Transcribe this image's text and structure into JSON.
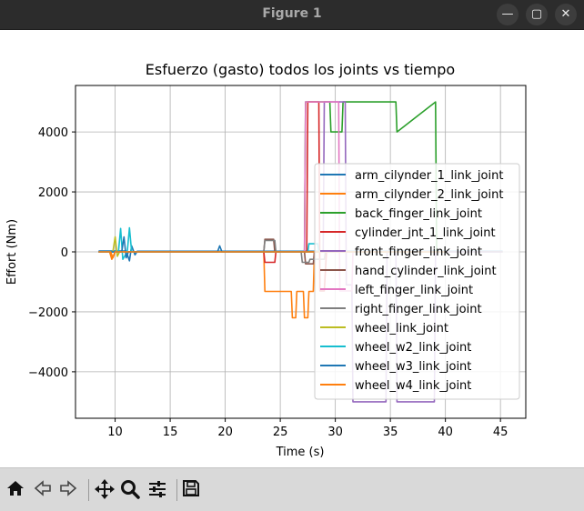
{
  "window": {
    "title": "Figure 1",
    "buttons": {
      "minimize": "—",
      "maximize": "▢",
      "close": "✕"
    }
  },
  "toolbar": {
    "tools": [
      "home-icon",
      "back-icon",
      "forward-icon",
      "pan-icon",
      "zoom-icon",
      "configure-subplots-icon",
      "save-icon"
    ]
  },
  "colors": {
    "titlebar_bg": "#2c2c2c",
    "toolbar_bg": "#d9d9d9",
    "series": [
      "#1f77b4",
      "#ff7f0e",
      "#2ca02c",
      "#d62728",
      "#9467bd",
      "#8c564b",
      "#e377c2",
      "#7f7f7f",
      "#bcbd22",
      "#17becf",
      "#1f77b4",
      "#ff7f0e"
    ]
  },
  "chart_data": {
    "type": "line",
    "title": "Esfuerzo (gasto) todos los joints vs tiempo",
    "xlabel": "Time (s)",
    "ylabel": "Effort (Nm)",
    "xlim": [
      6.4,
      47.3
    ],
    "ylim": [
      -5550,
      5550
    ],
    "xticks": [
      10,
      15,
      20,
      25,
      30,
      35,
      40,
      45
    ],
    "yticks": [
      -4000,
      -2000,
      0,
      2000,
      4000
    ],
    "yticklabels": [
      "−4000",
      "−2000",
      "0",
      "2000",
      "4000"
    ],
    "grid": true,
    "legend_position": "right",
    "series": [
      {
        "name": "arm_cilynder_1_link_joint",
        "x": [
          8.5,
          11,
          11.3,
          11.5,
          11.8,
          12,
          19.5,
          28,
          40,
          45.2
        ],
        "y": [
          30,
          30,
          -300,
          200,
          -100,
          20,
          20,
          20,
          20,
          20
        ]
      },
      {
        "name": "arm_cilynder_2_link_joint",
        "x": [
          8.5,
          9.5,
          9.7,
          10,
          23.5,
          23.6,
          26,
          26.1,
          26.4,
          26.5,
          27.1,
          27.2,
          27.5,
          27.6,
          28,
          28.1,
          29.5,
          40,
          45.2
        ],
        "y": [
          0,
          0,
          -250,
          0,
          0,
          -1320,
          -1320,
          -2200,
          -2200,
          -1320,
          -1320,
          -2200,
          -2200,
          -1320,
          -1320,
          0,
          0,
          0,
          0
        ]
      },
      {
        "name": "back_finger_link_joint",
        "x": [
          8.5,
          27.2,
          27.3,
          29.5,
          29.6,
          30.6,
          30.7,
          35.5,
          35.6,
          39.1,
          39.2,
          45.2
        ],
        "y": [
          0,
          0,
          5000,
          5000,
          4000,
          4000,
          5000,
          5000,
          4000,
          5000,
          0,
          0
        ]
      },
      {
        "name": "cylinder_jnt_1_link_joint",
        "x": [
          8.5,
          23.5,
          23.6,
          24.5,
          24.6,
          27.4,
          27.5,
          28.5,
          28.6,
          29,
          29.2,
          40
        ],
        "y": [
          0,
          0,
          -350,
          -350,
          0,
          0,
          5000,
          5000,
          -1300,
          -1300,
          0,
          0
        ]
      },
      {
        "name": "front_finger_link_joint",
        "x": [
          8.5,
          28.9,
          29,
          30.9,
          31,
          31.5,
          31.6,
          34.6,
          34.7,
          35.5,
          35.6,
          39,
          39.1,
          45.2
        ],
        "y": [
          0,
          0,
          5000,
          5000,
          -1100,
          -1100,
          -5000,
          -5000,
          0,
          0,
          -5000,
          -5000,
          0,
          0
        ]
      },
      {
        "name": "hand_cylinder_link_joint",
        "x": [
          8.5,
          23.5,
          23.6,
          24.4,
          24.5,
          27.2,
          27.3,
          28,
          28.1,
          40
        ],
        "y": [
          0,
          0,
          420,
          420,
          0,
          0,
          -400,
          -400,
          0,
          0
        ]
      },
      {
        "name": "left_finger_link_joint",
        "x": [
          8.5,
          27.2,
          27.3,
          30.3,
          30.4,
          31.5,
          31.6,
          40
        ],
        "y": [
          0,
          0,
          5000,
          5000,
          -1300,
          -1300,
          0,
          0
        ]
      },
      {
        "name": "right_finger_link_joint",
        "x": [
          8.5,
          23.5,
          23.6,
          24.5,
          24.6,
          26.9,
          27,
          27.6,
          27.7,
          29,
          29.1,
          40
        ],
        "y": [
          0,
          0,
          380,
          380,
          0,
          0,
          -350,
          -350,
          -250,
          -250,
          0,
          0
        ]
      },
      {
        "name": "wheel_link_joint",
        "x": [
          8.5,
          9.8,
          10,
          10.2,
          10.4,
          40
        ],
        "y": [
          0,
          0,
          500,
          -150,
          0,
          0
        ]
      },
      {
        "name": "wheel_w2_link_joint",
        "x": [
          8.5,
          10.3,
          10.5,
          10.7,
          11.1,
          11.3,
          11.5,
          27.5,
          27.6,
          28.4,
          28.5,
          40
        ],
        "y": [
          0,
          0,
          780,
          -250,
          0,
          800,
          0,
          0,
          270,
          270,
          0,
          0
        ]
      },
      {
        "name": "wheel_w3_link_joint",
        "x": [
          8.5,
          10.6,
          10.8,
          11,
          11.2,
          19.3,
          19.5,
          19.7,
          40
        ],
        "y": [
          0,
          0,
          500,
          -200,
          0,
          0,
          200,
          0,
          0
        ]
      },
      {
        "name": "wheel_w4_link_joint",
        "x": [
          8.5,
          9.6,
          9.8,
          10,
          40
        ],
        "y": [
          0,
          0,
          -200,
          0,
          0
        ]
      }
    ]
  }
}
